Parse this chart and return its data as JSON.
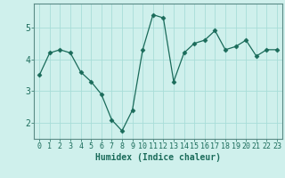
{
  "x": [
    0,
    1,
    2,
    3,
    4,
    5,
    6,
    7,
    8,
    9,
    10,
    11,
    12,
    13,
    14,
    15,
    16,
    17,
    18,
    19,
    20,
    21,
    22,
    23
  ],
  "y": [
    3.5,
    4.2,
    4.3,
    4.2,
    3.6,
    3.3,
    2.9,
    2.1,
    1.75,
    2.4,
    4.3,
    5.4,
    5.3,
    3.3,
    4.2,
    4.5,
    4.6,
    4.9,
    4.3,
    4.4,
    4.6,
    4.1,
    4.3,
    4.3
  ],
  "line_color": "#1a6b5a",
  "marker": "D",
  "marker_size": 2.5,
  "background_color": "#cff0ec",
  "grid_color": "#a8ddd8",
  "xlabel": "Humidex (Indice chaleur)",
  "ylim": [
    1.5,
    5.75
  ],
  "xlim": [
    -0.5,
    23.5
  ],
  "yticks": [
    2,
    3,
    4,
    5
  ],
  "xticks": [
    0,
    1,
    2,
    3,
    4,
    5,
    6,
    7,
    8,
    9,
    10,
    11,
    12,
    13,
    14,
    15,
    16,
    17,
    18,
    19,
    20,
    21,
    22,
    23
  ],
  "tick_color": "#1a6b5a",
  "axis_color": "#5a8a85",
  "xlabel_fontsize": 7,
  "tick_fontsize": 6,
  "ytick_fontsize": 7
}
